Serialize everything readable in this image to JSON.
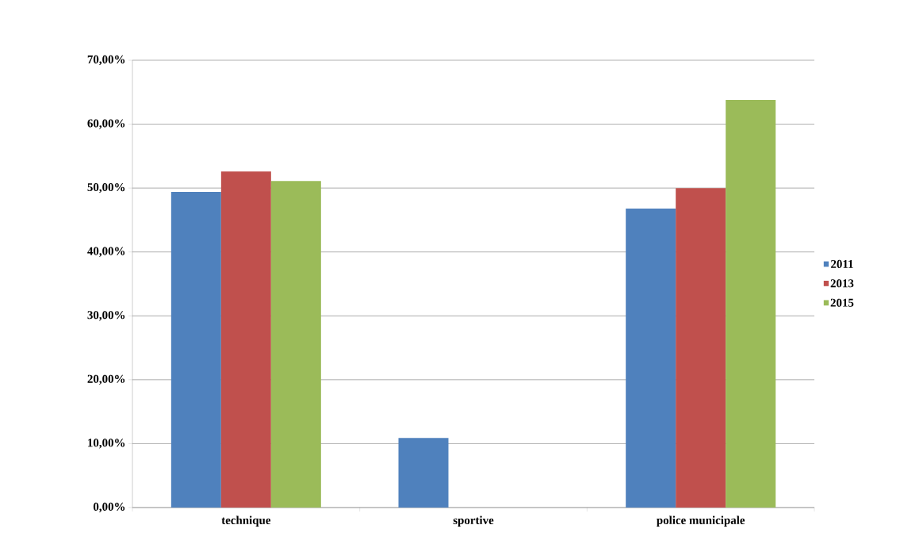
{
  "chart_data": {
    "type": "bar",
    "categories": [
      "technique",
      "sportive",
      "police municipale"
    ],
    "series": [
      {
        "name": "2011",
        "color": "#4f81bd",
        "values": [
          49.4,
          10.9,
          46.8
        ]
      },
      {
        "name": "2013",
        "color": "#c0504d",
        "values": [
          52.6,
          0,
          50.0
        ]
      },
      {
        "name": "2015",
        "color": "#9bbb59",
        "values": [
          51.1,
          0,
          63.8
        ]
      }
    ],
    "ylim": [
      0,
      70
    ],
    "yticks": [
      {
        "value": 0,
        "label": "0,00%"
      },
      {
        "value": 10,
        "label": "10,00%"
      },
      {
        "value": 20,
        "label": "20,00%"
      },
      {
        "value": 30,
        "label": "30,00%"
      },
      {
        "value": 40,
        "label": "40,00%"
      },
      {
        "value": 50,
        "label": "50,00%"
      },
      {
        "value": 60,
        "label": "60,00%"
      },
      {
        "value": 70,
        "label": "70,00%"
      }
    ],
    "grid": "y",
    "legend": "right"
  }
}
